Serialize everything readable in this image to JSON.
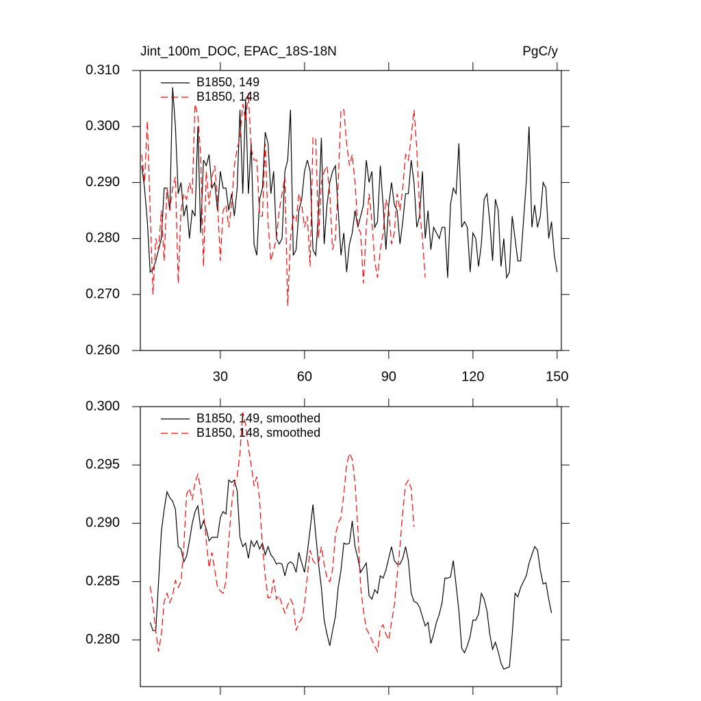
{
  "chart_data": [
    {
      "type": "line",
      "title": "Jint_100m_DOC, EPAC_18S-18N",
      "right_title": "PgC/y",
      "legend": "upper left",
      "x": [
        2,
        3,
        4,
        5,
        6,
        7,
        8,
        9,
        10,
        11,
        12,
        13,
        14,
        15,
        16,
        17,
        18,
        19,
        20,
        21,
        22,
        23,
        24,
        25,
        26,
        27,
        28,
        29,
        30,
        31,
        32,
        33,
        34,
        35,
        36,
        37,
        38,
        39,
        40,
        41,
        42,
        43,
        44,
        45,
        46,
        47,
        48,
        49,
        50,
        51,
        52,
        53,
        54,
        55,
        56,
        57,
        58,
        59,
        60,
        61,
        62,
        63,
        64,
        65,
        66,
        67,
        68,
        69,
        70,
        71,
        72,
        73,
        74,
        75,
        76,
        77,
        78,
        79,
        80,
        81,
        82,
        83,
        84,
        85,
        86,
        87,
        88,
        89,
        90,
        91,
        92,
        93,
        94,
        95,
        96,
        97,
        98,
        99,
        100,
        101,
        102,
        103,
        104,
        105,
        106,
        107,
        108,
        109,
        110,
        111,
        112,
        113,
        114,
        115,
        116,
        117,
        118,
        119,
        120,
        121,
        122,
        123,
        124,
        125,
        126,
        127,
        128,
        129,
        130,
        131,
        132,
        133,
        134,
        135,
        136,
        137,
        138,
        139,
        140,
        141,
        142,
        143,
        144,
        145,
        146,
        147,
        148,
        149,
        150
      ],
      "series": [
        {
          "name": "B1850, 149",
          "color": "#000000",
          "dash": false,
          "values": [
            0.293,
            0.289,
            0.283,
            0.274,
            0.2745,
            0.276,
            0.278,
            0.28,
            0.289,
            0.289,
            0.285,
            0.307,
            0.3,
            0.288,
            0.29,
            0.284,
            0.286,
            0.28,
            0.285,
            0.284,
            0.3,
            0.281,
            0.294,
            0.293,
            0.295,
            0.289,
            0.29,
            0.285,
            0.292,
            0.289,
            0.289,
            0.285,
            0.288,
            0.284,
            0.289,
            0.303,
            0.288,
            0.305,
            0.288,
            0.297,
            0.279,
            0.277,
            0.287,
            0.289,
            0.299,
            0.297,
            0.288,
            0.292,
            0.28,
            0.279,
            0.28,
            0.292,
            0.294,
            0.303,
            0.277,
            0.278,
            0.285,
            0.287,
            0.292,
            0.294,
            0.292,
            0.278,
            0.277,
            0.285,
            0.298,
            0.279,
            0.286,
            0.29,
            0.292,
            0.293,
            0.285,
            0.277,
            0.281,
            0.274,
            0.279,
            0.281,
            0.285,
            0.282,
            0.284,
            0.286,
            0.294,
            0.29,
            0.292,
            0.282,
            0.283,
            0.293,
            0.286,
            0.278,
            0.286,
            0.29,
            0.286,
            0.285,
            0.279,
            0.283,
            0.288,
            0.288,
            0.294,
            0.29,
            0.282,
            0.284,
            0.292,
            0.28,
            0.285,
            0.278,
            0.282,
            0.281,
            0.28,
            0.282,
            0.282,
            0.273,
            0.286,
            0.289,
            0.288,
            0.297,
            0.282,
            0.283,
            0.282,
            0.274,
            0.281,
            0.28,
            0.275,
            0.279,
            0.287,
            0.288,
            0.283,
            0.276,
            0.287,
            0.285,
            0.275,
            0.28,
            0.273,
            0.274,
            0.284,
            0.28,
            0.276,
            0.276,
            0.283,
            0.29,
            0.3,
            0.282,
            0.286,
            0.282,
            0.284,
            0.29,
            0.289,
            0.28,
            0.283,
            0.277,
            0.274
          ]
        },
        {
          "name": "B1850, 148",
          "color": "#ff0000",
          "dash": true,
          "values": [
            0.295,
            0.29,
            0.301,
            0.285,
            0.27,
            0.28,
            0.278,
            0.285,
            0.276,
            0.289,
            0.285,
            0.289,
            0.291,
            0.272,
            0.285,
            0.288,
            0.287,
            0.29,
            0.288,
            0.304,
            0.302,
            0.295,
            0.275,
            0.292,
            0.286,
            0.291,
            0.293,
            0.287,
            0.276,
            0.285,
            0.286,
            0.282,
            0.286,
            0.293,
            0.296,
            0.298,
            0.304,
            0.301,
            0.306,
            0.296,
            0.294,
            0.294,
            0.284,
            0.284,
            0.297,
            0.283,
            0.276,
            0.278,
            0.28,
            0.285,
            0.288,
            0.291,
            0.268,
            0.28,
            0.284,
            0.283,
            0.288,
            0.286,
            0.282,
            0.284,
            0.275,
            0.298,
            0.298,
            0.28,
            0.29,
            0.292,
            0.293,
            0.288,
            0.278,
            0.28,
            0.29,
            0.303,
            0.303,
            0.297,
            0.293,
            0.295,
            0.29,
            0.282,
            0.281,
            0.272,
            0.282,
            0.288,
            0.283,
            0.276,
            0.273,
            0.278,
            0.281,
            0.287,
            0.285,
            0.279,
            0.281,
            0.288,
            0.285,
            0.289,
            0.295,
            0.294,
            0.298,
            0.303,
            0.296,
            0.285,
            0.28,
            0.273,
            null,
            null,
            null,
            null,
            null,
            null,
            null,
            null,
            null,
            null,
            null,
            null,
            null,
            null,
            null,
            null,
            null,
            null,
            null,
            null,
            null,
            null,
            null,
            null,
            null,
            null,
            null,
            null,
            null,
            null,
            null,
            null,
            null,
            null,
            null,
            null,
            null,
            null,
            null,
            null,
            null,
            null,
            null,
            null,
            null,
            null,
            null
          ]
        }
      ],
      "xlim": [
        1.5,
        151.5
      ],
      "xticks": [
        30,
        60,
        90,
        120,
        150
      ],
      "show_xtick_labels": true,
      "ylim": [
        0.26,
        0.31
      ],
      "yticks": [
        {
          "value": 0.26,
          "label": "0.260"
        },
        {
          "value": 0.27,
          "label": "0.270"
        },
        {
          "value": 0.28,
          "label": "0.280"
        },
        {
          "value": 0.29,
          "label": "0.290"
        },
        {
          "value": 0.3,
          "label": "0.300"
        },
        {
          "value": 0.31,
          "label": "0.310"
        }
      ]
    },
    {
      "type": "line",
      "legend": "upper left",
      "x": [
        5,
        6,
        7,
        8,
        9,
        10,
        11,
        12,
        13,
        14,
        15,
        16,
        17,
        18,
        19,
        20,
        21,
        22,
        23,
        24,
        25,
        26,
        27,
        28,
        29,
        30,
        31,
        32,
        33,
        34,
        35,
        36,
        37,
        38,
        39,
        40,
        41,
        42,
        43,
        44,
        45,
        46,
        47,
        48,
        49,
        50,
        51,
        52,
        53,
        54,
        55,
        56,
        57,
        58,
        59,
        60,
        61,
        62,
        63,
        64,
        65,
        66,
        67,
        68,
        69,
        70,
        71,
        72,
        73,
        74,
        75,
        76,
        77,
        78,
        79,
        80,
        81,
        82,
        83,
        84,
        85,
        86,
        87,
        88,
        89,
        90,
        91,
        92,
        93,
        94,
        95,
        96,
        97,
        98,
        99,
        100,
        101,
        102,
        103,
        104,
        105,
        106,
        107,
        108,
        109,
        110,
        111,
        112,
        113,
        114,
        115,
        116,
        117,
        118,
        119,
        120,
        121,
        122,
        123,
        124,
        125,
        126,
        127,
        128,
        129,
        130,
        131,
        132,
        133,
        134,
        135,
        136,
        137,
        138,
        139,
        140,
        141,
        142,
        143,
        144,
        145,
        146,
        147,
        148
      ],
      "series": [
        {
          "name": "B1850, 149, smoothed",
          "color": "#000000",
          "dash": false,
          "values": [
            0.2815,
            0.2808,
            0.2808,
            0.285,
            0.2893,
            0.2912,
            0.2927,
            0.2922,
            0.2919,
            0.2912,
            0.288,
            0.2878,
            0.2867,
            0.2872,
            0.2885,
            0.29,
            0.291,
            0.2915,
            0.2895,
            0.2902,
            0.2895,
            0.2885,
            0.2888,
            0.2888,
            0.2888,
            0.2905,
            0.291,
            0.2908,
            0.2937,
            0.2935,
            0.2937,
            0.2928,
            0.2888,
            0.288,
            0.2883,
            0.287,
            0.2885,
            0.288,
            0.2885,
            0.2878,
            0.2883,
            0.2873,
            0.288,
            0.2873,
            0.287,
            0.2865,
            0.2866,
            0.2865,
            0.2855,
            0.2865,
            0.2867,
            0.2865,
            0.2858,
            0.2875,
            0.2866,
            0.2858,
            0.2875,
            0.2895,
            0.2916,
            0.289,
            0.2865,
            0.2845,
            0.2817,
            0.2805,
            0.2795,
            0.2808,
            0.282,
            0.2845,
            0.286,
            0.2883,
            0.2882,
            0.2883,
            0.2902,
            0.288,
            0.287,
            0.2858,
            0.2862,
            0.2866,
            0.2838,
            0.2835,
            0.2843,
            0.284,
            0.2855,
            0.2853,
            0.286,
            0.287,
            0.288,
            0.2868,
            0.2865,
            0.2865,
            0.287,
            0.288,
            0.2868,
            0.284,
            0.2833,
            0.2832,
            0.2828,
            0.282,
            0.2812,
            0.2815,
            0.2797,
            0.2805,
            0.2815,
            0.2822,
            0.2832,
            0.2853,
            0.2853,
            0.2854,
            0.2868,
            0.2847,
            0.2825,
            0.2793,
            0.2789,
            0.2795,
            0.2803,
            0.2817,
            0.2817,
            0.2822,
            0.284,
            0.2835,
            0.2825,
            0.2805,
            0.2792,
            0.2798,
            0.279,
            0.278,
            0.2775,
            0.2776,
            0.2777,
            0.2805,
            0.284,
            0.2837,
            0.2845,
            0.285,
            0.2855,
            0.2866,
            0.2873,
            0.288,
            0.2877,
            0.286,
            0.2848,
            0.2849,
            0.2835,
            0.2823
          ]
        },
        {
          "name": "B1850, 148, smoothed",
          "color": "#ff0000",
          "dash": true,
          "values": [
            0.2846,
            0.283,
            0.2808,
            0.279,
            0.2805,
            0.2833,
            0.284,
            0.2832,
            0.2838,
            0.2851,
            0.2845,
            0.285,
            0.288,
            0.2925,
            0.293,
            0.292,
            0.2935,
            0.2942,
            0.293,
            0.291,
            0.2885,
            0.2862,
            0.2875,
            0.286,
            0.2845,
            0.2842,
            0.284,
            0.285,
            0.2885,
            0.2915,
            0.2935,
            0.294,
            0.296,
            0.2995,
            0.2985,
            0.2965,
            0.295,
            0.2932,
            0.294,
            0.292,
            0.288,
            0.2855,
            0.2836,
            0.2837,
            0.2852,
            0.2835,
            0.2838,
            0.283,
            0.2823,
            0.283,
            0.2835,
            0.283,
            0.2808,
            0.2815,
            0.2818,
            0.283,
            0.2855,
            0.2877,
            0.2868,
            0.2865,
            0.2866,
            0.288,
            0.2865,
            0.2853,
            0.285,
            0.286,
            0.289,
            0.29,
            0.2905,
            0.2925,
            0.295,
            0.296,
            0.2955,
            0.2935,
            0.2895,
            0.2845,
            0.2825,
            0.281,
            0.2805,
            0.28,
            0.2795,
            0.279,
            0.281,
            0.2813,
            0.2805,
            0.28,
            0.2815,
            0.283,
            0.2855,
            0.288,
            0.291,
            0.2933,
            0.2937,
            0.293,
            0.2897,
            null,
            null,
            null,
            null,
            null,
            null,
            null,
            null,
            null,
            null,
            null,
            null,
            null,
            null,
            null,
            null,
            null,
            null,
            null,
            null,
            null,
            null,
            null,
            null,
            null,
            null,
            null,
            null,
            null,
            null,
            null,
            null,
            null,
            null,
            null,
            null,
            null,
            null,
            null,
            null,
            null,
            null,
            null,
            null,
            null,
            null,
            null,
            null,
            null
          ]
        }
      ],
      "xlim": [
        1.5,
        151.5
      ],
      "xticks": [
        30,
        60,
        90,
        120,
        150
      ],
      "show_xtick_labels": false,
      "ylim": [
        0.276,
        0.3
      ],
      "yticks": [
        {
          "value": 0.28,
          "label": "0.280"
        },
        {
          "value": 0.285,
          "label": "0.285"
        },
        {
          "value": 0.29,
          "label": "0.290"
        },
        {
          "value": 0.295,
          "label": "0.295"
        },
        {
          "value": 0.3,
          "label": "0.300"
        }
      ]
    }
  ]
}
